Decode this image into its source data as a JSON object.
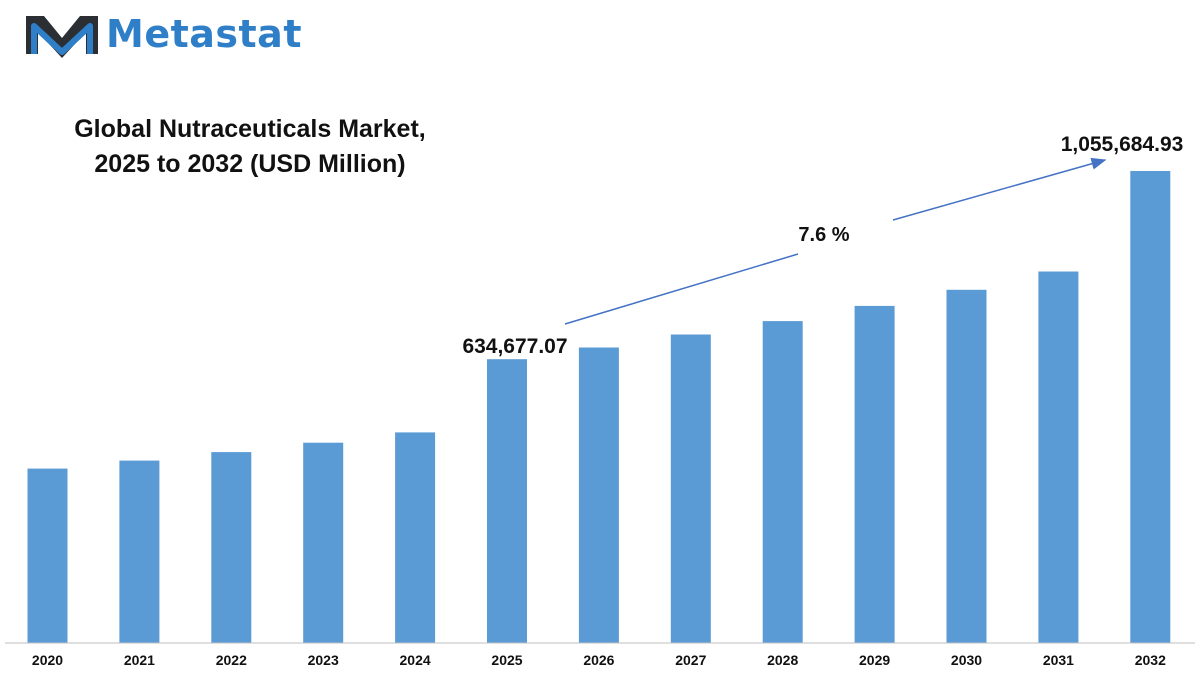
{
  "brand": {
    "name": "Metastat",
    "primary_color": "#2f7fc8",
    "dark_color": "#2b2f33"
  },
  "chart_data": {
    "type": "bar",
    "title_line1": "Global Nutraceuticals Market,",
    "title_line2": "2025 to 2032 (USD Million)",
    "categories": [
      "2020",
      "2021",
      "2022",
      "2023",
      "2024",
      "2025",
      "2026",
      "2027",
      "2028",
      "2029",
      "2030",
      "2031",
      "2032"
    ],
    "values": [
      390000,
      408000,
      427000,
      448000,
      471000,
      634677.07,
      661000,
      690000,
      720000,
      754000,
      790000,
      831000,
      1055684.93
    ],
    "bar_color": "#5b9bd5",
    "annotations": {
      "value_2025": "634,677.07",
      "value_2032": "1,055,684.93",
      "cagr": "7.6 %"
    },
    "grid": false,
    "legend": "none"
  }
}
